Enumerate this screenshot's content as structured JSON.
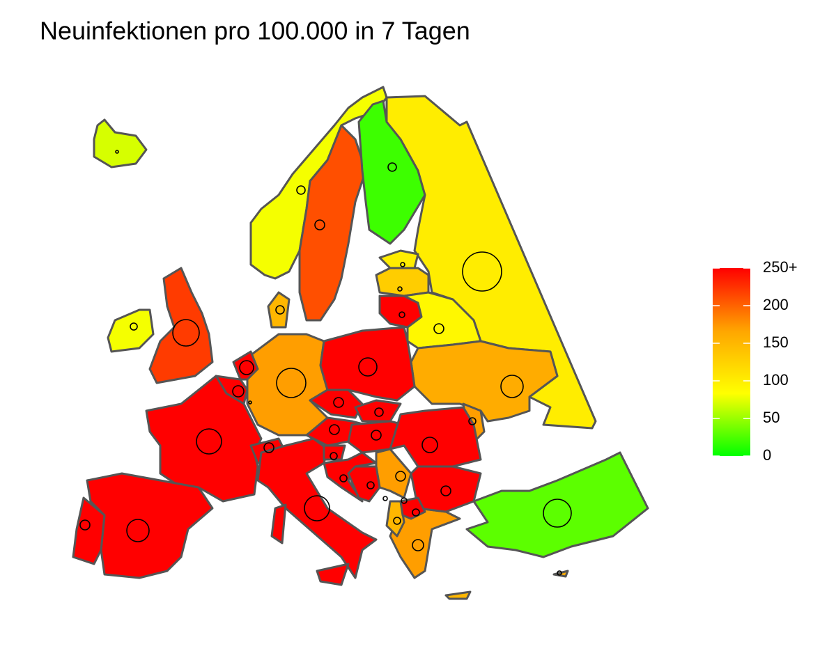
{
  "chart_data": {
    "type": "choropleth",
    "title": "Neuinfektionen pro 100.000 in 7 Tagen",
    "values": [
      70,
      80,
      210,
      20,
      100,
      100,
      130,
      250,
      90,
      160,
      170,
      250,
      170,
      150,
      220,
      80,
      250,
      250,
      250,
      250,
      250,
      250,
      250,
      250,
      250,
      250,
      250,
      250,
      250,
      250,
      250,
      170,
      250,
      250,
      170,
      150,
      250,
      250,
      30,
      150,
      160
    ],
    "colors": [
      "#00ff00",
      "#ffff00",
      "#ffa500",
      "#ff0000"
    ],
    "clim": [
      0,
      250
    ],
    "cticks": [
      0,
      50,
      100,
      150,
      200,
      {
        "value": 250,
        "label": "250+"
      }
    ]
  }
}
